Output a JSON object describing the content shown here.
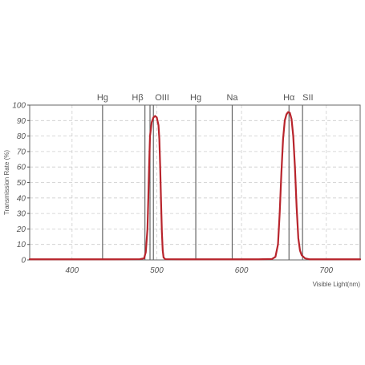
{
  "chart_data": {
    "type": "line",
    "title": "",
    "xlabel": "Visible Light(nm)",
    "ylabel": "Transmission Rate (%)",
    "xlim": [
      350,
      740
    ],
    "ylim": [
      0,
      100
    ],
    "x_ticks": [
      400,
      500,
      600,
      700
    ],
    "y_ticks": [
      0,
      10,
      20,
      30,
      40,
      50,
      60,
      70,
      80,
      90,
      100
    ],
    "grid": "dashed vertical and horizontal",
    "colors": {
      "curve": "#b8242c",
      "grid": "#cccccc",
      "emission_line": "#666666",
      "axis": "#555555"
    },
    "emission_lines": [
      {
        "label": "Hg",
        "x": 436
      },
      {
        "label": "Hβ",
        "x": 486
      },
      {
        "label": "",
        "x": 492
      },
      {
        "label": "OIII",
        "x": 496
      },
      {
        "label": "Hg",
        "x": 546
      },
      {
        "label": "Na",
        "x": 589
      },
      {
        "label": "Hα",
        "x": 656
      },
      {
        "label": "SII",
        "x": 672
      }
    ],
    "series": [
      {
        "points": [
          [
            350,
            0.4
          ],
          [
            400,
            0.4
          ],
          [
            450,
            0.4
          ],
          [
            480,
            0.5
          ],
          [
            485,
            1
          ],
          [
            487,
            5
          ],
          [
            489,
            20
          ],
          [
            490,
            40
          ],
          [
            491,
            62
          ],
          [
            492,
            80
          ],
          [
            494,
            89
          ],
          [
            496,
            92
          ],
          [
            498,
            93
          ],
          [
            500,
            92
          ],
          [
            502,
            87
          ],
          [
            503,
            78
          ],
          [
            504,
            60
          ],
          [
            505,
            38
          ],
          [
            506,
            18
          ],
          [
            507,
            6
          ],
          [
            508,
            1.5
          ],
          [
            510,
            0.5
          ],
          [
            530,
            0.4
          ],
          [
            580,
            0.4
          ],
          [
            620,
            0.4
          ],
          [
            636,
            0.6
          ],
          [
            640,
            2
          ],
          [
            643,
            10
          ],
          [
            645,
            30
          ],
          [
            647,
            56
          ],
          [
            649,
            78
          ],
          [
            651,
            90
          ],
          [
            653,
            94
          ],
          [
            655,
            95.5
          ],
          [
            657,
            95
          ],
          [
            659,
            91
          ],
          [
            661,
            80
          ],
          [
            663,
            60
          ],
          [
            665,
            34
          ],
          [
            667,
            14
          ],
          [
            669,
            6
          ],
          [
            671,
            3
          ],
          [
            675,
            1
          ],
          [
            680,
            0.4
          ],
          [
            700,
            0.4
          ],
          [
            740,
            0.4
          ]
        ]
      }
    ]
  }
}
